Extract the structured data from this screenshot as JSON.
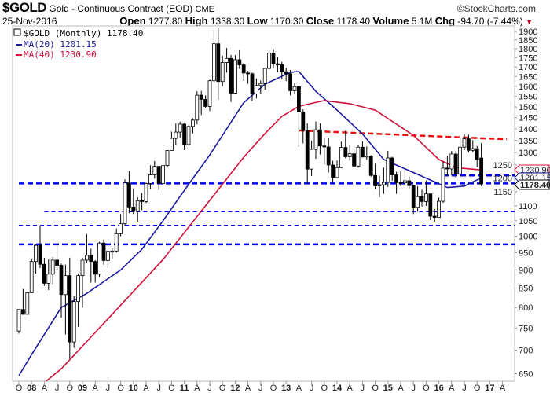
{
  "header": {
    "symbol": "$GOLD",
    "description": "Gold - Continuous Contract (EOD)",
    "exchange": "CME",
    "copyright": "©StockCharts.com",
    "date": "25-Nov-2016",
    "open_label": "Open",
    "open": "1277.80",
    "high_label": "High",
    "high": "1338.30",
    "low_label": "Low",
    "low": "1170.30",
    "close_label": "Close",
    "close": "1178.40",
    "volume_label": "Volume",
    "volume": "5.1M",
    "chg_label": "Chg",
    "chg": "-94.70 (-7.44%)",
    "chg_direction": "down-arrow-icon"
  },
  "chart_data": {
    "type": "candlestick",
    "title": "$GOLD (Monthly) 1178.40",
    "y_scale": "log",
    "ylim": [
      640,
      1930
    ],
    "y_ticks": [
      650,
      700,
      750,
      800,
      850,
      900,
      950,
      1000,
      1050,
      1100,
      1150,
      1200,
      1250,
      1300,
      1350,
      1400,
      1450,
      1500,
      1550,
      1600,
      1650,
      1700,
      1750,
      1800,
      1850,
      1900
    ],
    "x_ticks": [
      {
        "d": "2007-10",
        "label": "O",
        "bold": false
      },
      {
        "d": "2008-01",
        "label": "08",
        "bold": true
      },
      {
        "d": "2008-04",
        "label": "A",
        "bold": false
      },
      {
        "d": "2008-07",
        "label": "J",
        "bold": false
      },
      {
        "d": "2008-10",
        "label": "O",
        "bold": false
      },
      {
        "d": "2009-01",
        "label": "09",
        "bold": true
      },
      {
        "d": "2009-04",
        "label": "A",
        "bold": false
      },
      {
        "d": "2009-07",
        "label": "J",
        "bold": false
      },
      {
        "d": "2009-10",
        "label": "O",
        "bold": false
      },
      {
        "d": "2010-01",
        "label": "10",
        "bold": true
      },
      {
        "d": "2010-04",
        "label": "A",
        "bold": false
      },
      {
        "d": "2010-07",
        "label": "J",
        "bold": false
      },
      {
        "d": "2010-10",
        "label": "O",
        "bold": false
      },
      {
        "d": "2011-01",
        "label": "11",
        "bold": true
      },
      {
        "d": "2011-04",
        "label": "A",
        "bold": false
      },
      {
        "d": "2011-07",
        "label": "J",
        "bold": false
      },
      {
        "d": "2011-10",
        "label": "O",
        "bold": false
      },
      {
        "d": "2012-01",
        "label": "12",
        "bold": true
      },
      {
        "d": "2012-04",
        "label": "A",
        "bold": false
      },
      {
        "d": "2012-07",
        "label": "J",
        "bold": false
      },
      {
        "d": "2012-10",
        "label": "O",
        "bold": false
      },
      {
        "d": "2013-01",
        "label": "13",
        "bold": true
      },
      {
        "d": "2013-04",
        "label": "A",
        "bold": false
      },
      {
        "d": "2013-07",
        "label": "J",
        "bold": false
      },
      {
        "d": "2013-10",
        "label": "O",
        "bold": false
      },
      {
        "d": "2014-01",
        "label": "14",
        "bold": true
      },
      {
        "d": "2014-04",
        "label": "A",
        "bold": false
      },
      {
        "d": "2014-07",
        "label": "J",
        "bold": false
      },
      {
        "d": "2014-10",
        "label": "O",
        "bold": false
      },
      {
        "d": "2015-01",
        "label": "15",
        "bold": true
      },
      {
        "d": "2015-04",
        "label": "A",
        "bold": false
      },
      {
        "d": "2015-07",
        "label": "J",
        "bold": false
      },
      {
        "d": "2015-10",
        "label": "O",
        "bold": false
      },
      {
        "d": "2016-01",
        "label": "16",
        "bold": true
      },
      {
        "d": "2016-04",
        "label": "A",
        "bold": false
      },
      {
        "d": "2016-07",
        "label": "J",
        "bold": false
      },
      {
        "d": "2016-10",
        "label": "O",
        "bold": false
      },
      {
        "d": "2017-01",
        "label": "17",
        "bold": true
      },
      {
        "d": "2017-04",
        "label": "A",
        "bold": false
      }
    ],
    "candles_columns": [
      "date",
      "open",
      "high",
      "low",
      "close"
    ],
    "candles": [
      [
        "2007-10",
        743,
        795,
        737,
        795
      ],
      [
        "2007-11",
        795,
        848,
        782,
        783
      ],
      [
        "2007-12",
        783,
        840,
        785,
        838
      ],
      [
        "2008-01",
        838,
        933,
        845,
        924
      ],
      [
        "2008-02",
        924,
        975,
        890,
        972
      ],
      [
        "2008-03",
        972,
        1033,
        905,
        916
      ],
      [
        "2008-04",
        916,
        935,
        856,
        863
      ],
      [
        "2008-05",
        863,
        930,
        845,
        888
      ],
      [
        "2008-06",
        888,
        936,
        860,
        928
      ],
      [
        "2008-07",
        928,
        988,
        900,
        913
      ],
      [
        "2008-08",
        913,
        918,
        775,
        833
      ],
      [
        "2008-09",
        833,
        915,
        735,
        884
      ],
      [
        "2008-10",
        884,
        935,
        681,
        718
      ],
      [
        "2008-11",
        718,
        830,
        705,
        815
      ],
      [
        "2008-12",
        815,
        890,
        753,
        884
      ],
      [
        "2009-01",
        884,
        935,
        800,
        928
      ],
      [
        "2009-02",
        928,
        1007,
        920,
        942
      ],
      [
        "2009-03",
        942,
        962,
        865,
        924
      ],
      [
        "2009-04",
        924,
        928,
        865,
        888
      ],
      [
        "2009-05",
        888,
        983,
        880,
        979
      ],
      [
        "2009-06",
        979,
        990,
        915,
        927
      ],
      [
        "2009-07",
        927,
        960,
        905,
        954
      ],
      [
        "2009-08",
        954,
        965,
        930,
        955
      ],
      [
        "2009-09",
        955,
        1025,
        950,
        1008
      ],
      [
        "2009-10",
        1008,
        1072,
        1000,
        1040
      ],
      [
        "2009-11",
        1040,
        1195,
        1033,
        1182
      ],
      [
        "2009-12",
        1182,
        1227,
        1075,
        1096
      ],
      [
        "2010-01",
        1096,
        1162,
        1072,
        1081
      ],
      [
        "2010-02",
        1081,
        1130,
        1045,
        1118
      ],
      [
        "2010-03",
        1118,
        1145,
        1085,
        1115
      ],
      [
        "2010-04",
        1115,
        1183,
        1110,
        1180
      ],
      [
        "2010-05",
        1180,
        1249,
        1160,
        1212
      ],
      [
        "2010-06",
        1212,
        1266,
        1198,
        1245
      ],
      [
        "2010-07",
        1245,
        1245,
        1155,
        1180
      ],
      [
        "2010-08",
        1180,
        1250,
        1175,
        1248
      ],
      [
        "2010-09",
        1248,
        1310,
        1242,
        1308
      ],
      [
        "2010-10",
        1308,
        1388,
        1315,
        1359
      ],
      [
        "2010-11",
        1359,
        1424,
        1330,
        1386
      ],
      [
        "2010-12",
        1386,
        1432,
        1360,
        1421
      ],
      [
        "2011-01",
        1421,
        1425,
        1310,
        1333
      ],
      [
        "2011-02",
        1333,
        1415,
        1330,
        1411
      ],
      [
        "2011-03",
        1411,
        1448,
        1380,
        1439
      ],
      [
        "2011-04",
        1439,
        1575,
        1420,
        1556
      ],
      [
        "2011-05",
        1556,
        1577,
        1462,
        1536
      ],
      [
        "2011-06",
        1536,
        1555,
        1496,
        1502
      ],
      [
        "2011-07",
        1502,
        1633,
        1480,
        1628
      ],
      [
        "2011-08",
        1628,
        1911,
        1620,
        1828
      ],
      [
        "2011-09",
        1828,
        1923,
        1532,
        1624
      ],
      [
        "2011-10",
        1624,
        1761,
        1600,
        1724
      ],
      [
        "2011-11",
        1724,
        1804,
        1670,
        1746
      ],
      [
        "2011-12",
        1746,
        1765,
        1523,
        1566
      ],
      [
        "2012-01",
        1566,
        1764,
        1562,
        1739
      ],
      [
        "2012-02",
        1739,
        1792,
        1690,
        1711
      ],
      [
        "2012-03",
        1711,
        1721,
        1627,
        1668
      ],
      [
        "2012-04",
        1668,
        1679,
        1613,
        1664
      ],
      [
        "2012-05",
        1664,
        1670,
        1527,
        1562
      ],
      [
        "2012-06",
        1562,
        1640,
        1540,
        1604
      ],
      [
        "2012-07",
        1604,
        1630,
        1560,
        1614
      ],
      [
        "2012-08",
        1614,
        1694,
        1582,
        1692
      ],
      [
        "2012-09",
        1692,
        1790,
        1687,
        1776
      ],
      [
        "2012-10",
        1776,
        1798,
        1692,
        1717
      ],
      [
        "2012-11",
        1717,
        1755,
        1672,
        1711
      ],
      [
        "2012-12",
        1711,
        1727,
        1636,
        1675
      ],
      [
        "2013-01",
        1675,
        1697,
        1627,
        1664
      ],
      [
        "2013-02",
        1664,
        1684,
        1555,
        1578
      ],
      [
        "2013-03",
        1578,
        1617,
        1562,
        1598
      ],
      [
        "2013-04",
        1598,
        1604,
        1321,
        1476
      ],
      [
        "2013-05",
        1476,
        1488,
        1338,
        1393
      ],
      [
        "2013-06",
        1393,
        1424,
        1180,
        1234
      ],
      [
        "2013-07",
        1234,
        1348,
        1208,
        1313
      ],
      [
        "2013-08",
        1313,
        1433,
        1275,
        1396
      ],
      [
        "2013-09",
        1396,
        1424,
        1292,
        1327
      ],
      [
        "2013-10",
        1327,
        1362,
        1251,
        1323
      ],
      [
        "2013-11",
        1323,
        1361,
        1221,
        1250
      ],
      [
        "2013-12",
        1250,
        1267,
        1180,
        1202
      ],
      [
        "2014-01",
        1202,
        1268,
        1200,
        1240
      ],
      [
        "2014-02",
        1240,
        1345,
        1239,
        1321
      ],
      [
        "2014-03",
        1321,
        1392,
        1277,
        1283
      ],
      [
        "2014-04",
        1283,
        1332,
        1268,
        1295
      ],
      [
        "2014-05",
        1295,
        1315,
        1240,
        1246
      ],
      [
        "2014-06",
        1246,
        1332,
        1240,
        1322
      ],
      [
        "2014-07",
        1322,
        1346,
        1280,
        1282
      ],
      [
        "2014-08",
        1282,
        1325,
        1271,
        1286
      ],
      [
        "2014-09",
        1286,
        1290,
        1205,
        1210
      ],
      [
        "2014-10",
        1210,
        1255,
        1160,
        1171
      ],
      [
        "2014-11",
        1171,
        1209,
        1130,
        1175
      ],
      [
        "2014-12",
        1175,
        1240,
        1142,
        1184
      ],
      [
        "2015-01",
        1184,
        1307,
        1167,
        1278
      ],
      [
        "2015-02",
        1278,
        1283,
        1190,
        1212
      ],
      [
        "2015-03",
        1212,
        1224,
        1142,
        1183
      ],
      [
        "2015-04",
        1183,
        1225,
        1170,
        1182
      ],
      [
        "2015-05",
        1182,
        1232,
        1170,
        1190
      ],
      [
        "2015-06",
        1190,
        1205,
        1162,
        1172
      ],
      [
        "2015-07",
        1172,
        1175,
        1072,
        1095
      ],
      [
        "2015-08",
        1095,
        1170,
        1080,
        1132
      ],
      [
        "2015-09",
        1132,
        1157,
        1098,
        1115
      ],
      [
        "2015-10",
        1115,
        1191,
        1100,
        1142
      ],
      [
        "2015-11",
        1142,
        1143,
        1052,
        1065
      ],
      [
        "2015-12",
        1065,
        1089,
        1046,
        1061
      ],
      [
        "2016-01",
        1061,
        1129,
        1061,
        1116
      ],
      [
        "2016-02",
        1116,
        1263,
        1110,
        1238
      ],
      [
        "2016-03",
        1238,
        1287,
        1208,
        1235
      ],
      [
        "2016-04",
        1235,
        1306,
        1210,
        1294
      ],
      [
        "2016-05",
        1294,
        1306,
        1200,
        1216
      ],
      [
        "2016-06",
        1216,
        1362,
        1200,
        1322
      ],
      [
        "2016-07",
        1322,
        1377,
        1310,
        1357
      ],
      [
        "2016-08",
        1357,
        1375,
        1300,
        1309
      ],
      [
        "2016-09",
        1309,
        1352,
        1301,
        1316
      ],
      [
        "2016-10",
        1316,
        1327,
        1241,
        1272
      ],
      [
        "2016-11",
        1277.8,
        1338.3,
        1170.3,
        1178.4
      ]
    ],
    "series": [
      {
        "name": "MA(20)",
        "last": "1201.15",
        "color": "#1a1a9c",
        "points": [
          [
            "2007-10",
            646
          ],
          [
            "2008-01",
            690
          ],
          [
            "2008-08",
            800
          ],
          [
            "2009-02",
            836
          ],
          [
            "2009-10",
            900
          ],
          [
            "2010-03",
            960
          ],
          [
            "2010-08",
            1050
          ],
          [
            "2010-12",
            1133
          ],
          [
            "2011-07",
            1290
          ],
          [
            "2012-03",
            1520
          ],
          [
            "2012-08",
            1610
          ],
          [
            "2013-02",
            1672
          ],
          [
            "2013-04",
            1676
          ],
          [
            "2013-08",
            1575
          ],
          [
            "2014-01",
            1485
          ],
          [
            "2014-07",
            1378
          ],
          [
            "2014-12",
            1272
          ],
          [
            "2015-08",
            1214
          ],
          [
            "2016-03",
            1165
          ],
          [
            "2016-07",
            1170
          ],
          [
            "2016-11",
            1201.15
          ]
        ]
      },
      {
        "name": "MA(40)",
        "last": "1230.90",
        "color": "#d0103a",
        "points": [
          [
            "2008-04",
            632
          ],
          [
            "2008-08",
            660
          ],
          [
            "2009-08",
            783
          ],
          [
            "2010-08",
            930
          ],
          [
            "2011-08",
            1138
          ],
          [
            "2012-03",
            1281
          ],
          [
            "2012-08",
            1379
          ],
          [
            "2012-12",
            1456
          ],
          [
            "2013-04",
            1503
          ],
          [
            "2013-10",
            1530
          ],
          [
            "2014-04",
            1515
          ],
          [
            "2014-10",
            1485
          ],
          [
            "2015-07",
            1372
          ],
          [
            "2016-01",
            1272
          ],
          [
            "2016-05",
            1240
          ],
          [
            "2016-11",
            1230.9
          ]
        ]
      }
    ],
    "price_labels": [
      {
        "value": "1230.90",
        "color": "#d0103a"
      },
      {
        "value": "1201.15",
        "color": "#1a1a9c"
      },
      {
        "value": "1178.40",
        "color": "#000000"
      }
    ],
    "annotations": [
      {
        "kind": "hline",
        "price": 1180,
        "from": "2007-10",
        "style": "thick-dashed",
        "color": "#0000ee"
      },
      {
        "kind": "hline",
        "price": 1210,
        "from": "2016-02",
        "style": "thick-dashed",
        "color": "#0000ee"
      },
      {
        "kind": "hline",
        "price": 1080,
        "from": "2008-04",
        "style": "thin-dashed",
        "color": "#0000ee"
      },
      {
        "kind": "hline",
        "price": 1035,
        "from": "2007-10",
        "style": "thin-dashed",
        "color": "#0000ee"
      },
      {
        "kind": "hline",
        "price": 975,
        "from": "2007-10",
        "style": "thick-dashed",
        "color": "#0000ee"
      },
      {
        "kind": "trendline",
        "p1": [
          "2013-04",
          1393
        ],
        "p2": [
          "2017-05",
          1355
        ],
        "style": "thick-dashed",
        "color": "#ee1111"
      }
    ],
    "legend": {
      "placement": "top-left",
      "symbol_line": "$GOLD (Monthly) 1178.40",
      "ma20": "MA(20) 1201.15",
      "ma40": "MA(40) 1230.90"
    }
  }
}
